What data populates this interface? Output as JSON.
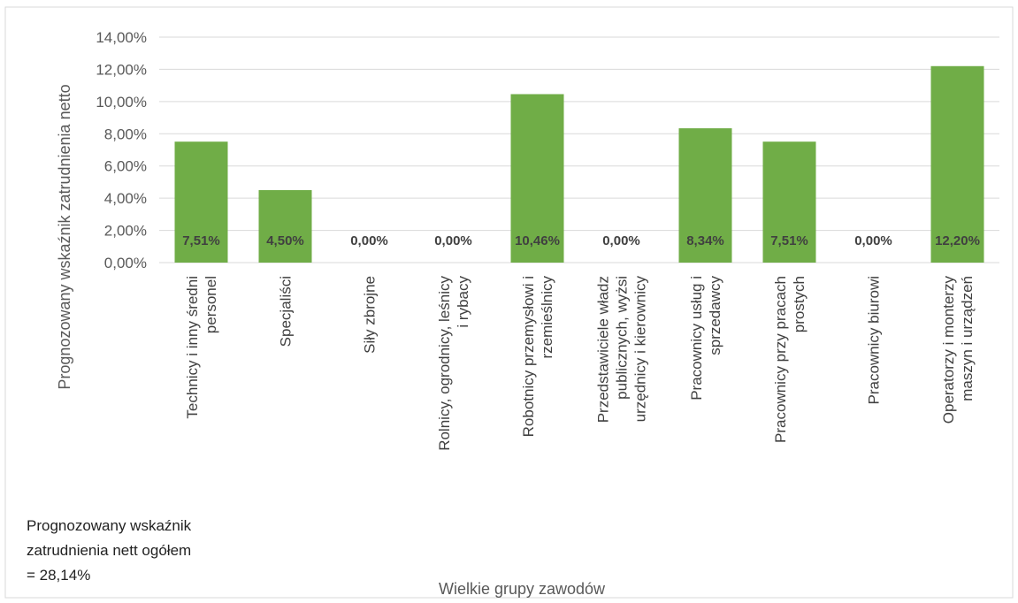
{
  "colors": {
    "bar": "#70ad47",
    "grid": "#d9d9d9",
    "text": "#595959"
  },
  "chart_data": {
    "type": "bar",
    "title": "",
    "ylabel": "Prognozowany wskaźnik zatrudnienia netto",
    "xlabel": "Wielkie grupy zawodów",
    "ylim": [
      0,
      0.14
    ],
    "yticks": [
      "0,00%",
      "2,00%",
      "4,00%",
      "6,00%",
      "8,00%",
      "10,00%",
      "12,00%",
      "14,00%"
    ],
    "grid": true,
    "categories": [
      [
        "Technicy i inny średni",
        "personel"
      ],
      [
        "Specjaliści"
      ],
      [
        "Siły zbrojne"
      ],
      [
        "Rolnicy, ogrodnicy, leśnicy",
        "i rybacy"
      ],
      [
        "Robotnicy przemysłowi i",
        "rzemieślnicy"
      ],
      [
        "Przedstawiciele władz",
        "publicznych, wyżsi",
        "urzędnicy i kierownicy"
      ],
      [
        "Pracownicy usług i",
        "sprzedawcy"
      ],
      [
        "Pracownicy przy pracach",
        "prostych"
      ],
      [
        "Pracownicy biurowi"
      ],
      [
        "Operatorzy i monterzy",
        "maszyn i urządzeń"
      ]
    ],
    "values": [
      0.0751,
      0.045,
      0,
      0,
      0.1046,
      0,
      0.0834,
      0.0751,
      0,
      0.122
    ],
    "data_labels": [
      "7,51%",
      "4,50%",
      "0,00%",
      "0,00%",
      "10,46%",
      "0,00%",
      "8,34%",
      "7,51%",
      "0,00%",
      "12,20%"
    ]
  },
  "note": {
    "lines": [
      "Prognozowany wskaźnik",
      "zatrudnienia nett ogółem",
      "= 28,14%"
    ]
  }
}
